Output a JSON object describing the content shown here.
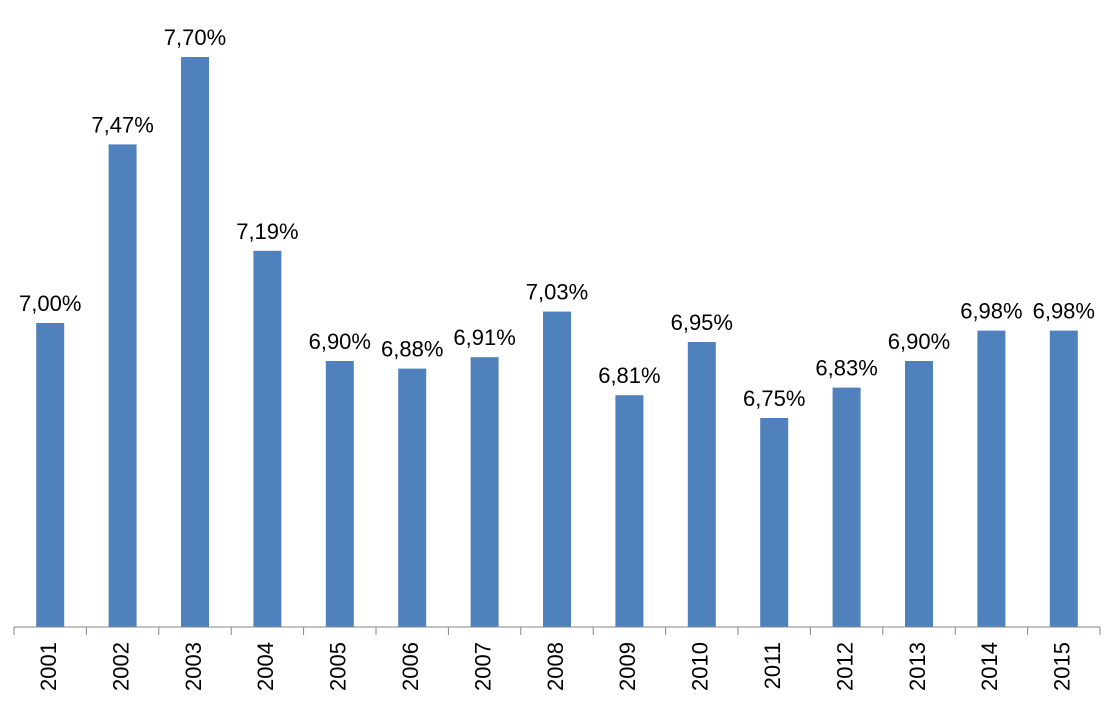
{
  "chart_data": {
    "type": "bar",
    "categories": [
      "2001",
      "2002",
      "2003",
      "2004",
      "2005",
      "2006",
      "2007",
      "2008",
      "2009",
      "2010",
      "2011",
      "2012",
      "2013",
      "2014",
      "2015"
    ],
    "values": [
      7.0,
      7.47,
      7.7,
      7.19,
      6.9,
      6.88,
      6.91,
      7.03,
      6.81,
      6.95,
      6.75,
      6.83,
      6.9,
      6.98,
      6.98
    ],
    "value_labels": [
      "7,00%",
      "7,47%",
      "7,70%",
      "7,19%",
      "6,90%",
      "6,88%",
      "6,91%",
      "7,03%",
      "6,81%",
      "6,95%",
      "6,75%",
      "6,83%",
      "6,90%",
      "6,98%",
      "6,98%"
    ],
    "color": "#4f81bd",
    "ylim": [
      6.2,
      7.8
    ]
  }
}
